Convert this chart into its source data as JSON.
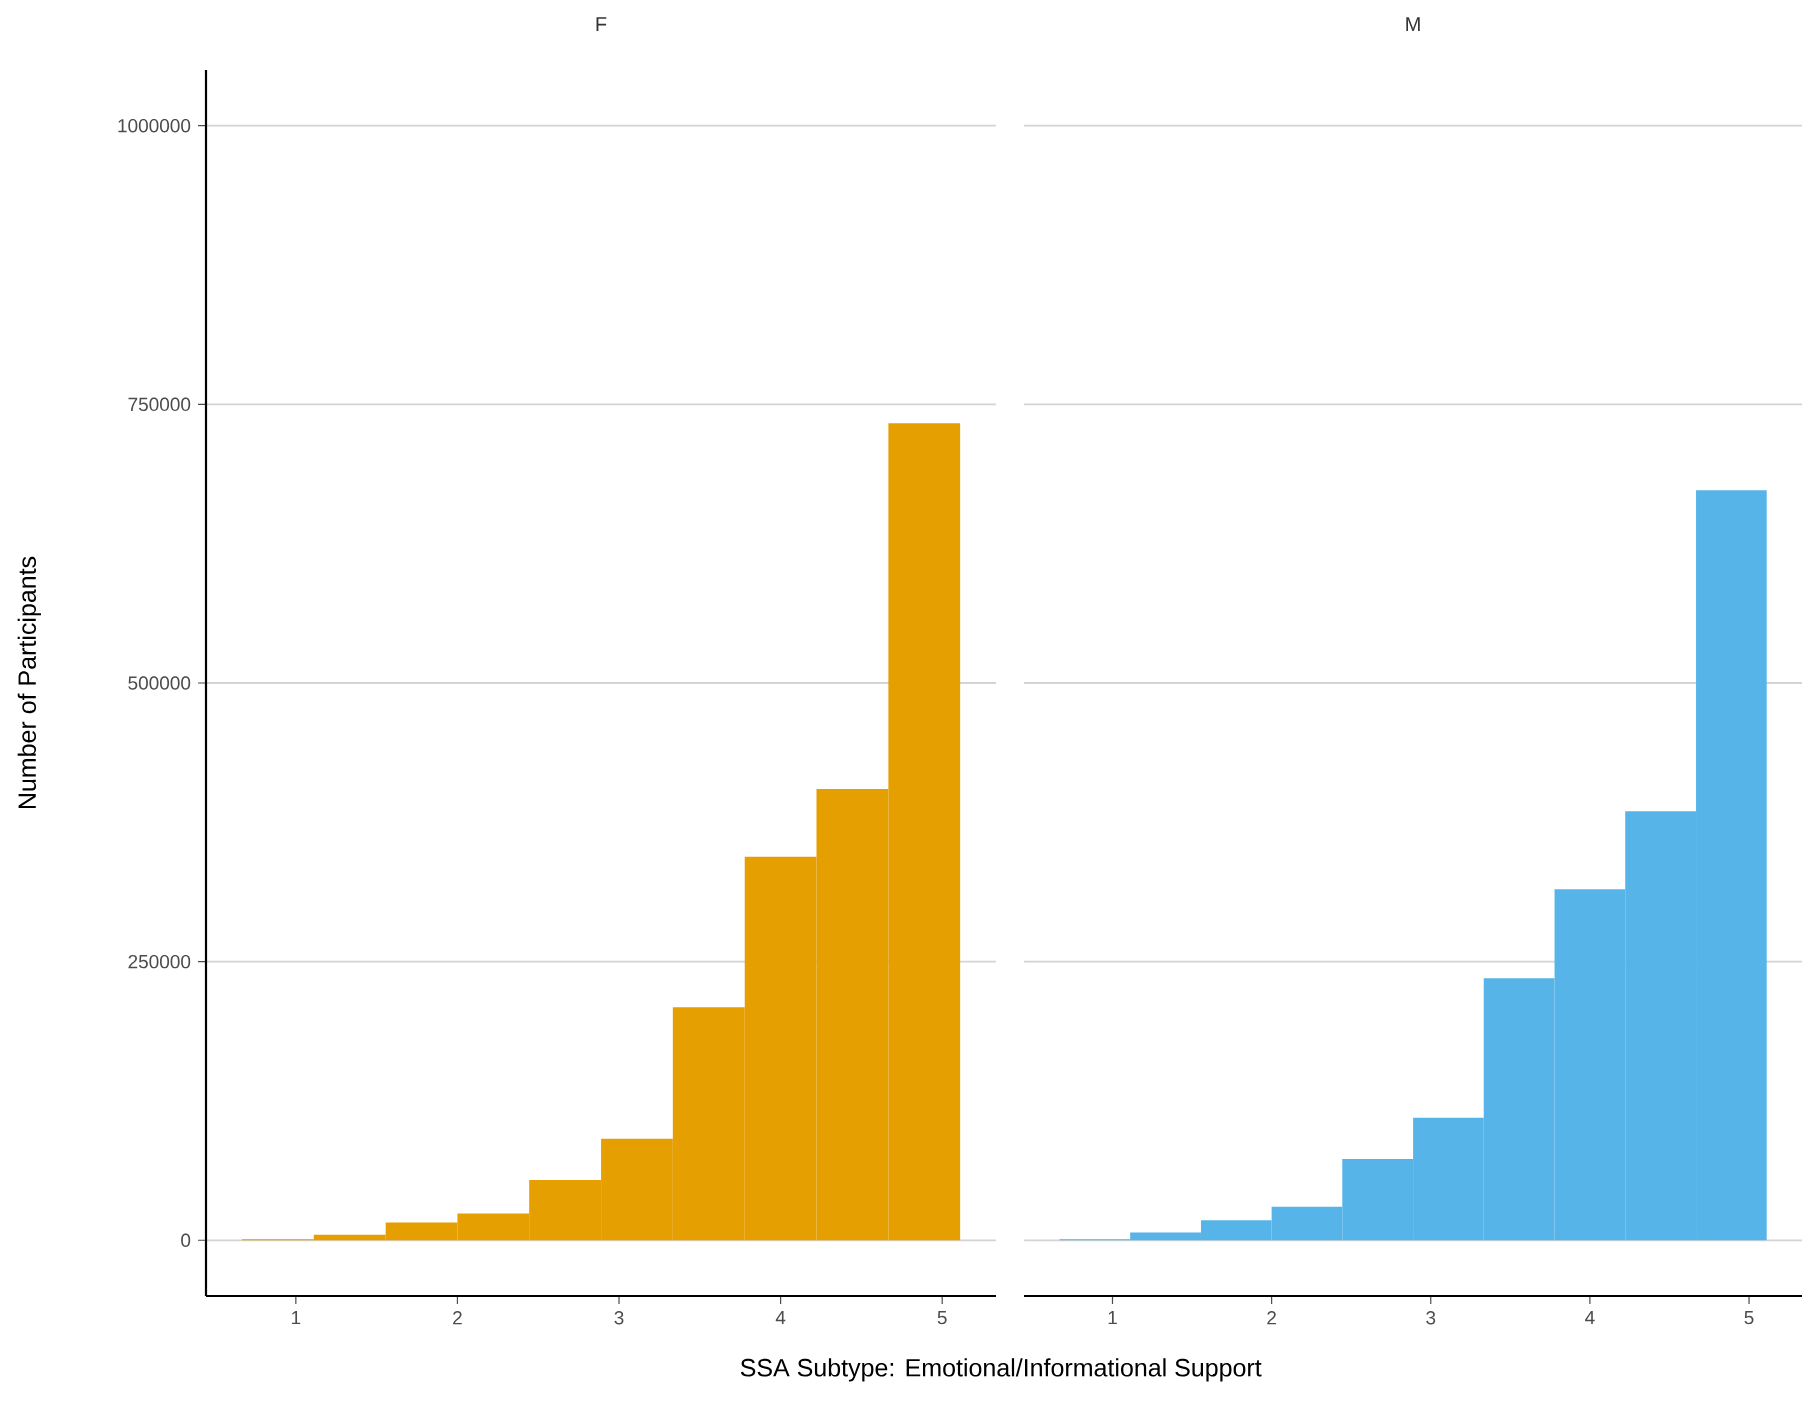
{
  "chart_data": [
    {
      "type": "histogram",
      "title": "F",
      "xlabel": "SSA Subtype: Emotional/Informational Support",
      "ylabel": "Number of Participants",
      "bins": [
        0.667,
        1.111,
        1.556,
        2,
        2.444,
        2.889,
        3.333,
        3.778,
        4.222,
        4.667,
        5.111
      ],
      "values": [
        1000,
        5000,
        16000,
        24000,
        54000,
        91000,
        209000,
        344000,
        405000,
        733000
      ],
      "color": "#e69f00",
      "xlim": [
        0.444,
        5.333
      ],
      "ylim": [
        -50000,
        1050000
      ],
      "xticks": [
        1,
        2,
        3,
        4,
        5
      ],
      "yticks": [
        0,
        250000,
        500000,
        750000,
        1000000
      ],
      "grid": "y"
    },
    {
      "type": "histogram",
      "title": "M",
      "bins": [
        0.667,
        1.111,
        1.556,
        2,
        2.444,
        2.889,
        3.333,
        3.778,
        4.222,
        4.667,
        5.111
      ],
      "values": [
        1000,
        7000,
        18000,
        30000,
        73000,
        110000,
        235000,
        315000,
        385000,
        673000
      ],
      "color": "#56b4e9",
      "xlim": [
        0.444,
        5.333
      ],
      "ylim": [
        -50000,
        1000000
      ],
      "xticks": [
        1,
        2,
        3,
        4,
        5
      ],
      "yticks": [
        0,
        250000,
        500000,
        750000,
        1000000
      ],
      "grid": "y",
      "tick_labels": "x"
    }
  ]
}
